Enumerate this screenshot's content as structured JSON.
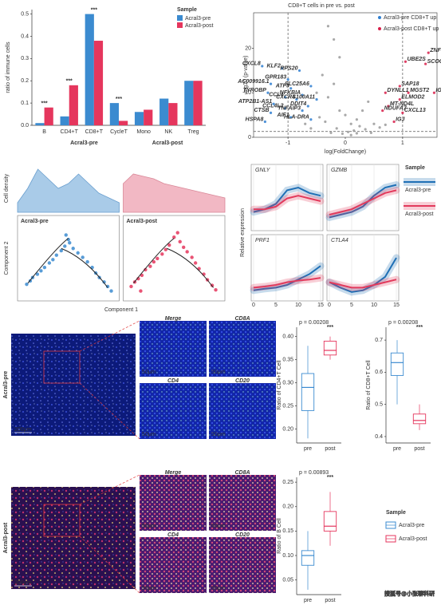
{
  "chart_data": [
    {
      "type": "bar",
      "ylabel": "ratio of immune cells",
      "legend_title": "Sample",
      "categories": [
        "B",
        "CD4+T",
        "CD8+T",
        "CycleT",
        "Mono",
        "NK",
        "Treg"
      ],
      "series": [
        {
          "name": "Acral3-pre",
          "color": "#3b8bd0",
          "values": [
            0.01,
            0.04,
            0.5,
            0.1,
            0.06,
            0.12,
            0.2
          ]
        },
        {
          "name": "Acral3-post",
          "color": "#e5365d",
          "values": [
            0.08,
            0.18,
            0.38,
            0.02,
            0.07,
            0.1,
            0.2
          ]
        }
      ],
      "ylim": [
        0,
        0.52
      ],
      "yticks": [
        {
          "value": 0,
          "label": "0.0"
        },
        0.1,
        0.2,
        0.3,
        0.4,
        0.5
      ],
      "annotations": [
        {
          "x": "B",
          "text": "***"
        },
        {
          "x": "CD4+T",
          "text": "***"
        },
        {
          "x": "CD8+T",
          "text": "***"
        },
        {
          "x": "CycleT",
          "text": "***"
        }
      ],
      "groups": [
        "Acral3-pre",
        "Acral3-post"
      ]
    },
    {
      "type": "scatter",
      "title": "CD8+T cells in pre vs. post",
      "xlabel": "log(FoldChange)",
      "ylabel": "-log10 (p-value)",
      "xlim": [
        -1.6,
        1.6
      ],
      "ylim": [
        0,
        28
      ],
      "xticks": [
        -1,
        0,
        1
      ],
      "yticks": [
        0,
        10,
        20
      ],
      "thresholds": {
        "x": [
          -1,
          1
        ],
        "y": [
          1.3
        ]
      },
      "series": [
        {
          "color": "#9a9a9a",
          "x": [
            -0.3,
            -0.2,
            -0.1,
            0,
            0.1,
            0.2,
            0.3,
            -0.4,
            0.4,
            -0.5,
            0.5,
            -0.15,
            0.15,
            -0.25,
            0.25,
            -0.05,
            0.05,
            -0.35,
            0.35,
            -0.6,
            0.6,
            -0.3,
            -0.2,
            -0.1,
            0.1,
            0.2,
            -0.45,
            0.45,
            -0.7,
            0.7
          ],
          "values": [
            25,
            22,
            18,
            5,
            3,
            4,
            6,
            14,
            8,
            10,
            3,
            2,
            1.5,
            1,
            2.5,
            0.8,
            1.2,
            3.5,
            1.8,
            2,
            2.2,
            9,
            12,
            6,
            0.5,
            0.9,
            4.5,
            1,
            3,
            2.8
          ]
        },
        {
          "name": "Acral3-pre CD8+T up",
          "color": "#2f7fd1",
          "labels": [
            "CXCL8",
            "KLF2",
            "RPS20",
            "GPR183",
            "AC009916.1",
            "ATF3",
            "SLC25A6",
            "TYROBP",
            "NFKBIA",
            "CCL4",
            "CXCR4",
            "S100A11",
            "ATP2B1-AS1",
            "CCL4L2",
            "DDIT4",
            "CTSB",
            "TNFAIP3",
            "AIF1",
            "HLA-DRA",
            "HSPA8"
          ],
          "x": [
            -1.45,
            -1.1,
            -0.8,
            -1.0,
            -1.3,
            -0.95,
            -0.6,
            -1.35,
            -0.75,
            -1.05,
            -0.85,
            -0.5,
            -1.25,
            -1.05,
            -0.65,
            -1.3,
            -0.75,
            -0.95,
            -0.6,
            -1.4
          ],
          "values": [
            16,
            15.5,
            15,
            13,
            12,
            11,
            11.5,
            10,
            9.5,
            9,
            8.5,
            8.5,
            7.5,
            6.5,
            7,
            5.5,
            6,
            4.5,
            4,
            3.5
          ]
        },
        {
          "name": "Acral3-post CD8+T up",
          "color": "#d81e4a",
          "labels": [
            "ZNF330",
            "UBE2S",
            "SCOC",
            "IGKC",
            "SAP18",
            "DYNLL1",
            "MGST2",
            "ELMOD2",
            "MT-ND4L",
            "NDUFA7",
            "CXCL13",
            "IGJ"
          ],
          "x": [
            1.45,
            1.05,
            1.4,
            1.55,
            0.95,
            0.7,
            1.1,
            0.95,
            0.75,
            0.65,
            1.0,
            0.85
          ],
          "values": [
            19,
            17,
            16.5,
            10,
            11.5,
            10,
            10,
            8.5,
            7,
            6,
            5.5,
            3.5
          ]
        }
      ]
    },
    {
      "type": "area",
      "ylabel": "Cell density",
      "x": [
        0,
        1,
        2,
        3,
        4,
        5,
        6,
        7,
        8,
        9,
        10
      ],
      "xlim": [
        0,
        10
      ],
      "ylim": [
        0,
        1
      ],
      "facets": [
        {
          "color": "#6a9fcf",
          "fill": "#a9cbe8",
          "values": [
            0.2,
            0.5,
            0.9,
            0.7,
            0.5,
            0.6,
            0.8,
            0.6,
            0.4,
            0.3,
            0.2
          ]
        },
        {
          "color": "#d98898",
          "fill": "#f2b8c4",
          "values": [
            0.6,
            0.8,
            0.75,
            0.7,
            0.6,
            0.55,
            0.5,
            0.45,
            0.4,
            0.35,
            0.3
          ]
        }
      ]
    },
    {
      "type": "scatter",
      "xlabel": "Component 1",
      "ylabel": "Component 2",
      "xlim": [
        -4,
        4
      ],
      "ylim": [
        -3,
        3.2
      ],
      "facets": [
        {
          "title": "Acral3-pre",
          "color": "#3b8bd0",
          "x": [
            -3.5,
            -3.2,
            -3.0,
            -2.6,
            -2.3,
            -2.0,
            -1.6,
            -1.3,
            -1.0,
            -0.6,
            -0.3,
            0,
            -0.2,
            0.1,
            0.4,
            0.8,
            1.2,
            1.6,
            2.0,
            2.3,
            2.6,
            3.0,
            3.3,
            3.6
          ],
          "values": [
            -1.8,
            -1.5,
            -1.2,
            -0.9,
            -0.6,
            -0.3,
            0.1,
            0.4,
            0.8,
            1.2,
            1.6,
            2.2,
            2.6,
            1.9,
            1.4,
            1.0,
            0.6,
            0.2,
            -0.3,
            -0.8,
            -1.2,
            -1.6,
            -2.0,
            -2.4
          ]
        },
        {
          "title": "Acral3-post",
          "color": "#e5365d",
          "x": [
            -3.6,
            -3.3,
            -3.0,
            -2.7,
            -2.4,
            -2.0,
            -1.7,
            -1.4,
            -1.0,
            -0.7,
            -0.4,
            0,
            0.3,
            0.5,
            0.8,
            1.1,
            1.5,
            1.8,
            2.1,
            2.5,
            2.8,
            3.2,
            3.5,
            -2.8
          ],
          "values": [
            -2.0,
            -1.6,
            -1.3,
            -1.0,
            -0.5,
            -0.2,
            0.2,
            0.5,
            0.9,
            1.3,
            1.7,
            2.4,
            2.8,
            2.0,
            1.5,
            1.1,
            0.6,
            0.1,
            -0.4,
            -0.9,
            -1.4,
            -1.9,
            -2.3,
            -2.4
          ]
        }
      ]
    },
    {
      "type": "line",
      "ylabel": "Relative expression",
      "legend_title": "Sample",
      "series": [
        {
          "name": "Acral3-pre",
          "color": "#1f6fb5"
        },
        {
          "name": "Acral3-post",
          "color": "#e23a5c"
        }
      ],
      "x": [
        0,
        2.5,
        5,
        7.5,
        10,
        12.5,
        15
      ],
      "xlim": [
        0,
        15
      ],
      "ylim": [
        0,
        1
      ],
      "xticks": [
        0,
        5,
        10,
        15
      ],
      "facets": [
        {
          "title": "GNLY",
          "values": [
            [
              0.3,
              0.35,
              0.45,
              0.7,
              0.75,
              0.65,
              0.6
            ],
            [
              0.35,
              0.35,
              0.4,
              0.55,
              0.6,
              0.55,
              0.5
            ]
          ]
        },
        {
          "title": "GZMB",
          "values": [
            [
              0.2,
              0.25,
              0.3,
              0.4,
              0.6,
              0.75,
              0.8
            ],
            [
              0.25,
              0.3,
              0.35,
              0.45,
              0.55,
              0.65,
              0.7
            ]
          ]
        },
        {
          "title": "PRF1",
          "values": [
            [
              0.15,
              0.18,
              0.2,
              0.25,
              0.35,
              0.45,
              0.6
            ],
            [
              0.2,
              0.22,
              0.25,
              0.3,
              0.33,
              0.35,
              0.38
            ]
          ]
        },
        {
          "title": "CTLA4",
          "values": [
            [
              0.3,
              0.2,
              0.12,
              0.15,
              0.25,
              0.4,
              0.75
            ],
            [
              0.3,
              0.25,
              0.2,
              0.2,
              0.25,
              0.3,
              0.35
            ]
          ]
        }
      ]
    },
    {
      "type": "box",
      "ylabel": "Ratio of CD4+T Cell",
      "pvalue": "p = 0.00208",
      "significance": "***",
      "categories": [
        "pre",
        "post"
      ],
      "colors": [
        "#3b8bd0",
        "#e5365d"
      ],
      "ylim": [
        0.17,
        0.42
      ],
      "yticks": [
        {
          "value": 0.2,
          "label": "0.20"
        },
        0.25,
        {
          "value": 0.3,
          "label": "0.30"
        },
        0.35,
        {
          "value": 0.4,
          "label": "0.40"
        }
      ],
      "boxes": [
        {
          "min": 0.18,
          "q1": 0.24,
          "median": 0.29,
          "q3": 0.32,
          "max": 0.38
        },
        {
          "min": 0.35,
          "q1": 0.36,
          "median": 0.37,
          "q3": 0.39,
          "max": 0.4
        }
      ]
    },
    {
      "type": "box",
      "ylabel": "Ratio of CD8+T Cell",
      "pvalue": "p = 0.00208",
      "significance": "***",
      "categories": [
        "pre",
        "post"
      ],
      "colors": [
        "#3b8bd0",
        "#e5365d"
      ],
      "ylim": [
        0.38,
        0.74
      ],
      "yticks": [
        0.4,
        0.5,
        0.6,
        0.7
      ],
      "boxes": [
        {
          "min": 0.5,
          "q1": 0.59,
          "median": 0.63,
          "q3": 0.66,
          "max": 0.7
        },
        {
          "min": 0.42,
          "q1": 0.44,
          "median": 0.45,
          "q3": 0.47,
          "max": 0.5
        }
      ]
    },
    {
      "type": "box",
      "ylabel": "Ratio of B Cell",
      "pvalue": "p = 0.00893",
      "significance": "***",
      "categories": [
        "pre",
        "post"
      ],
      "colors": [
        "#3b8bd0",
        "#e5365d"
      ],
      "ylim": [
        0.02,
        0.26
      ],
      "yticks": [
        {
          "value": 0.05,
          "label": "0.05"
        },
        {
          "value": 0.1,
          "label": "0.10"
        },
        {
          "value": 0.15,
          "label": "0.15"
        },
        {
          "value": 0.2,
          "label": "0.20"
        },
        {
          "value": 0.25,
          "label": "0.25"
        }
      ],
      "boxes": [
        {
          "min": 0.03,
          "q1": 0.08,
          "median": 0.1,
          "q3": 0.11,
          "max": 0.15
        },
        {
          "min": 0.12,
          "q1": 0.15,
          "median": 0.16,
          "q3": 0.19,
          "max": 0.23
        }
      ],
      "legend": {
        "title": "Sample",
        "entries": [
          "Acral3-pre",
          "Acral3-post"
        ]
      }
    }
  ],
  "images": {
    "samples": [
      {
        "label": "Acral3-pre",
        "scale": "200μm",
        "tiles": [
          {
            "title": "Merge",
            "scale": "50μm"
          },
          {
            "title": "CD8A",
            "scale": "50μm"
          },
          {
            "title": "CD4",
            "scale": "50μm"
          },
          {
            "title": "CD20",
            "scale": "50μm"
          }
        ]
      },
      {
        "label": "Acral3-post",
        "scale": "200μm",
        "tiles": [
          {
            "title": "Merge",
            "scale": "50μm"
          },
          {
            "title": "CD8A",
            "scale": "50μm"
          },
          {
            "title": "CD4",
            "scale": "50μm"
          },
          {
            "title": "CD20",
            "scale": "50μm"
          }
        ]
      }
    ]
  },
  "watermark": "搜狐号@小张聊科研"
}
